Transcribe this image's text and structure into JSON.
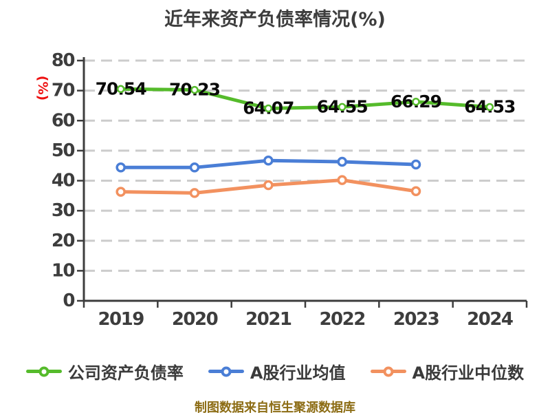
{
  "footer": {
    "text": "制图数据来自恒生聚源数据库"
  },
  "colors": {
    "background": "#ffffff",
    "axis": "#3d3d3d",
    "grid": "#cccccc",
    "tick_label": "#3d3d3d",
    "title_text": "#3d3d3d",
    "ylabel_text": "#ee1111",
    "data_label": "#0a0a0a",
    "footer_text": "#8c6c14",
    "marker_fill": "#ffffff"
  },
  "chart_data": {
    "type": "line",
    "title": "近年来资产负债率情况(%)",
    "ylabel": "(%)",
    "xlabel": "",
    "categories": [
      "2019",
      "2020",
      "2021",
      "2022",
      "2023",
      "2024"
    ],
    "ylim": [
      0,
      80
    ],
    "yticks": [
      0,
      10,
      20,
      30,
      40,
      50,
      60,
      70,
      80
    ],
    "grid": "horizontal-dashed",
    "legend_position": "bottom",
    "series": [
      {
        "name": "公司资产负债率",
        "color": "#55bb2b",
        "values": [
          70.54,
          70.23,
          64.07,
          64.55,
          66.29,
          64.53
        ],
        "value_labels": [
          "70.54",
          "70.23",
          "64.07",
          "64.55",
          "66.29",
          "64.53"
        ],
        "show_value_labels": true
      },
      {
        "name": "A股行业均值",
        "color": "#4a7ed6",
        "values": [
          44.4,
          44.4,
          46.7,
          46.3,
          45.4,
          null
        ],
        "show_value_labels": false
      },
      {
        "name": "A股行业中位数",
        "color": "#f2915f",
        "values": [
          36.3,
          35.9,
          38.5,
          40.2,
          36.5,
          null
        ],
        "show_value_labels": false
      }
    ]
  }
}
